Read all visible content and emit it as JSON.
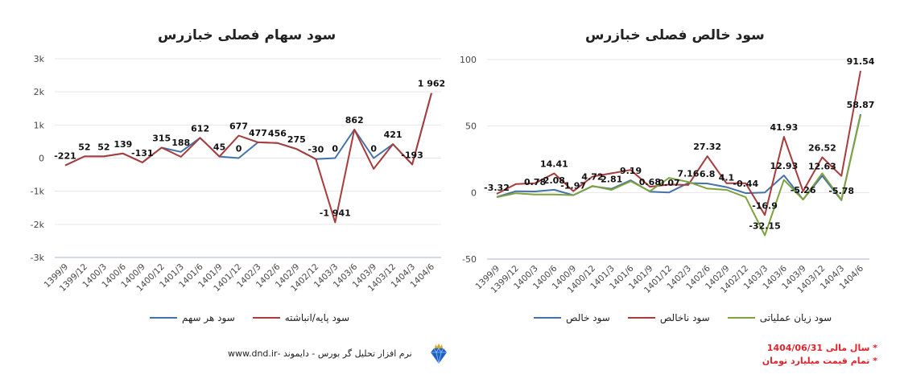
{
  "chart_data": [
    {
      "type": "line",
      "title": "سود سهام فصلی خبازرس",
      "categories": [
        "1399/9",
        "1399/12",
        "1400/3",
        "1400/6",
        "1400/9",
        "1400/12",
        "1401/3",
        "1401/6",
        "1401/9",
        "1401/12",
        "1402/3",
        "1402/6",
        "1402/9",
        "1402/12",
        "1403/3",
        "1403/6",
        "1403/9",
        "1403/12",
        "1404/3",
        "1404/6"
      ],
      "ylim": [
        -3000,
        3000
      ],
      "yticks": [
        -3000,
        -2000,
        -1000,
        0,
        1000,
        2000,
        3000
      ],
      "ytick_labels": [
        "-3k",
        "-2k",
        "-1k",
        "0",
        "1k",
        "2k",
        "3k"
      ],
      "grid": true,
      "legend_position": "bottom",
      "series": [
        {
          "name": "سود هر سهم",
          "color": "#4472a8",
          "values": [
            -221,
            52,
            52,
            139,
            -131,
            315,
            188,
            612,
            45,
            0,
            477,
            456,
            275,
            -30,
            0,
            862,
            0,
            421,
            -193,
            1962
          ]
        },
        {
          "name": "سود پایه/انباشته",
          "color": "#a83c3c",
          "values": [
            -221,
            52,
            52,
            139,
            -131,
            315,
            40,
            612,
            45,
            677,
            477,
            456,
            275,
            -30,
            -1941,
            862,
            -325,
            421,
            -193,
            1962
          ]
        }
      ],
      "data_labels": [
        {
          "i": 0,
          "text": "-221",
          "series": 0
        },
        {
          "i": 1,
          "text": "52",
          "series": 0
        },
        {
          "i": 2,
          "text": "52",
          "series": 0
        },
        {
          "i": 3,
          "text": "139",
          "series": 0
        },
        {
          "i": 4,
          "text": "-131",
          "series": 0
        },
        {
          "i": 5,
          "text": "315",
          "series": 0
        },
        {
          "i": 6,
          "text": "188",
          "series": 0
        },
        {
          "i": 7,
          "text": "612",
          "series": 0
        },
        {
          "i": 8,
          "text": "45",
          "series": 0
        },
        {
          "i": 9,
          "text": "0",
          "series": 0
        },
        {
          "i": 9,
          "text": "677",
          "series": 1
        },
        {
          "i": 10,
          "text": "477",
          "series": 0
        },
        {
          "i": 11,
          "text": "456",
          "series": 0
        },
        {
          "i": 12,
          "text": "275",
          "series": 0
        },
        {
          "i": 13,
          "text": "-30",
          "series": 0
        },
        {
          "i": 14,
          "text": "0",
          "series": 0
        },
        {
          "i": 14,
          "text": "-1 941",
          "series": 1
        },
        {
          "i": 15,
          "text": "862",
          "series": 0
        },
        {
          "i": 16,
          "text": "0",
          "series": 0
        },
        {
          "i": 17,
          "text": "421",
          "series": 0
        },
        {
          "i": 18,
          "text": "-193",
          "series": 0
        },
        {
          "i": 19,
          "text": "1 962",
          "series": 0
        }
      ]
    },
    {
      "type": "line",
      "title": "سود خالص فصلی خبازرس",
      "categories": [
        "1399/9",
        "1399/12",
        "1400/3",
        "1400/6",
        "1400/9",
        "1400/12",
        "1401/3",
        "1401/6",
        "1401/9",
        "1401/12",
        "1402/3",
        "1402/6",
        "1402/9",
        "1402/12",
        "1403/3",
        "1403/6",
        "1403/9",
        "1403/12",
        "1404/3",
        "1404/6"
      ],
      "ylim": [
        -50,
        100
      ],
      "yticks": [
        -50,
        0,
        50,
        100
      ],
      "ytick_labels": [
        "-50",
        "0",
        "50",
        "100"
      ],
      "grid": true,
      "legend_position": "bottom",
      "series": [
        {
          "name": "سود خالص",
          "color": "#4472a8",
          "values": [
            -3.32,
            1,
            0.78,
            2.08,
            -1.97,
            4.72,
            2.81,
            9.19,
            0.68,
            0.07,
            7.16,
            6.8,
            4.1,
            -0.44,
            0,
            12.93,
            -5.26,
            12.63,
            -5.78,
            58.87
          ]
        },
        {
          "name": "سود ناخالص",
          "color": "#a83c3c",
          "values": [
            -1,
            6.4,
            7,
            14.41,
            1,
            12,
            14.5,
            17,
            4.4,
            6,
            5.7,
            27.32,
            7,
            7,
            -16.9,
            41.93,
            1,
            26.52,
            12.5,
            91.54
          ]
        },
        {
          "name": "سود زیان عملیاتی",
          "color": "#7ea33e",
          "values": [
            -3.5,
            -0.5,
            -1.5,
            -1.5,
            -2,
            5,
            2,
            8.5,
            1,
            11,
            8,
            3,
            2,
            -3.5,
            -32.15,
            9.5,
            -5.3,
            14.5,
            -5.5,
            58
          ]
        }
      ],
      "data_labels": [
        {
          "i": 0,
          "text": "-3.32",
          "series": 0
        },
        {
          "i": 2,
          "text": "0.78",
          "series": 0
        },
        {
          "i": 3,
          "text": "2.08",
          "series": 0
        },
        {
          "i": 3,
          "text": "14.41",
          "series": 1
        },
        {
          "i": 4,
          "text": "-1.97",
          "series": 0
        },
        {
          "i": 5,
          "text": "4.72",
          "series": 0
        },
        {
          "i": 6,
          "text": "2.81",
          "series": 0
        },
        {
          "i": 7,
          "text": "9.19",
          "series": 0
        },
        {
          "i": 8,
          "text": "0.68",
          "series": 0
        },
        {
          "i": 9,
          "text": "0.07",
          "series": 0
        },
        {
          "i": 10,
          "text": "7.16",
          "series": 0
        },
        {
          "i": 11,
          "text": "6.8",
          "series": 0
        },
        {
          "i": 11,
          "text": "27.32",
          "series": 1
        },
        {
          "i": 12,
          "text": "4.1",
          "series": 0
        },
        {
          "i": 13,
          "text": "-0.44",
          "series": 0
        },
        {
          "i": 14,
          "text": "-16.9",
          "series": 1
        },
        {
          "i": 14,
          "text": "-32.15",
          "series": 2
        },
        {
          "i": 15,
          "text": "12.93",
          "series": 0
        },
        {
          "i": 15,
          "text": "41.93",
          "series": 1
        },
        {
          "i": 16,
          "text": "-5.26",
          "series": 0
        },
        {
          "i": 17,
          "text": "12.63",
          "series": 0
        },
        {
          "i": 17,
          "text": "26.52",
          "series": 1
        },
        {
          "i": 18,
          "text": "-5.78",
          "series": 0
        },
        {
          "i": 19,
          "text": "58.87",
          "series": 0
        },
        {
          "i": 19,
          "text": "91.54",
          "series": 1
        }
      ]
    }
  ],
  "footer": {
    "text": "نرم افزار تحلیل گر بورس - دایموند -www.dnd.ir",
    "logo": "diamond-logo-icon"
  },
  "notes": [
    "* سال مالی 1404/06/31",
    "* تمام قیمت میلیارد تومان"
  ]
}
